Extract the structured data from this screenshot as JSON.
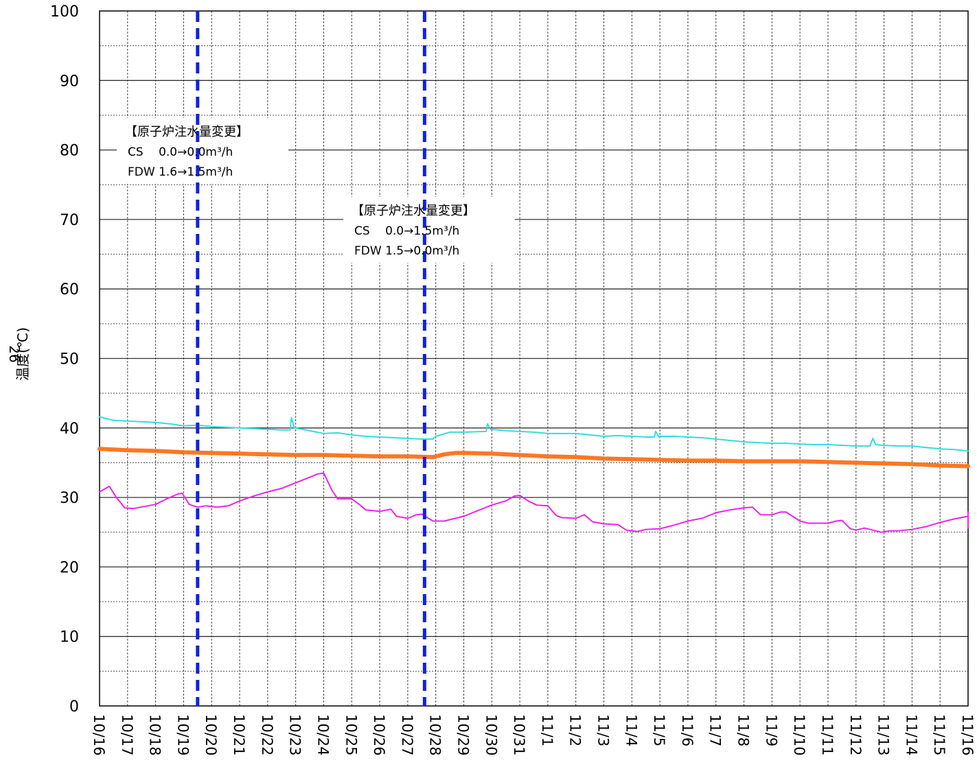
{
  "chart_data": {
    "type": "line",
    "title": "",
    "ylabel": "温度(℃)",
    "ylabel_prefix": "26",
    "xlabel": "",
    "ylim": [
      0,
      100
    ],
    "yticks": [
      0,
      10,
      20,
      30,
      40,
      50,
      60,
      70,
      80,
      90,
      100
    ],
    "grid": true,
    "x_start": "10/16",
    "x_end": "11/16",
    "x_ticks": [
      "10/16",
      "10/17",
      "10/18",
      "10/19",
      "10/20",
      "10/21",
      "10/22",
      "10/23",
      "10/24",
      "10/25",
      "10/26",
      "10/27",
      "10/28",
      "10/29",
      "10/30",
      "10/31",
      "11/1",
      "11/2",
      "11/3",
      "11/4",
      "11/5",
      "11/6",
      "11/7",
      "11/8",
      "11/9",
      "11/10",
      "11/11",
      "11/12",
      "11/13",
      "11/14",
      "11/15",
      "11/16"
    ],
    "series": [
      {
        "color": "#33dddd",
        "line_width": 2,
        "points": [
          [
            0,
            41.6
          ],
          [
            0.5,
            41.1
          ],
          [
            1,
            41.0
          ],
          [
            2,
            40.8
          ],
          [
            2.5,
            40.6
          ],
          [
            3,
            40.3
          ],
          [
            3.5,
            40.4
          ],
          [
            4,
            40.2
          ],
          [
            5,
            40.0
          ],
          [
            6,
            39.8
          ],
          [
            6.5,
            39.7
          ],
          [
            6.8,
            39.7
          ],
          [
            6.85,
            41.5
          ],
          [
            6.95,
            40.0
          ],
          [
            7,
            40.0
          ],
          [
            7.5,
            39.6
          ],
          [
            8,
            39.2
          ],
          [
            8.5,
            39.3
          ],
          [
            9,
            39.0
          ],
          [
            9.5,
            38.8
          ],
          [
            10,
            38.7
          ],
          [
            10.5,
            38.6
          ],
          [
            11,
            38.5
          ],
          [
            11.5,
            38.4
          ],
          [
            11.9,
            38.4
          ],
          [
            12,
            38.8
          ],
          [
            12.5,
            39.4
          ],
          [
            13,
            39.4
          ],
          [
            13.8,
            39.5
          ],
          [
            13.85,
            40.6
          ],
          [
            13.95,
            39.8
          ],
          [
            14.5,
            39.6
          ],
          [
            15,
            39.5
          ],
          [
            15.5,
            39.4
          ],
          [
            16,
            39.2
          ],
          [
            16.5,
            39.2
          ],
          [
            17,
            39.2
          ],
          [
            17.5,
            39.0
          ],
          [
            18,
            38.8
          ],
          [
            18.5,
            38.9
          ],
          [
            19,
            38.8
          ],
          [
            19.5,
            38.7
          ],
          [
            19.8,
            38.7
          ],
          [
            19.85,
            39.5
          ],
          [
            19.95,
            38.8
          ],
          [
            20.5,
            38.8
          ],
          [
            21,
            38.7
          ],
          [
            21.5,
            38.6
          ],
          [
            22,
            38.4
          ],
          [
            22.5,
            38.2
          ],
          [
            23,
            38.0
          ],
          [
            23.5,
            37.9
          ],
          [
            24,
            37.8
          ],
          [
            24.5,
            37.8
          ],
          [
            25,
            37.7
          ],
          [
            25.5,
            37.6
          ],
          [
            26,
            37.6
          ],
          [
            26.5,
            37.5
          ],
          [
            27,
            37.4
          ],
          [
            27.5,
            37.4
          ],
          [
            27.6,
            38.5
          ],
          [
            27.7,
            37.6
          ],
          [
            28,
            37.5
          ],
          [
            28.5,
            37.4
          ],
          [
            29,
            37.4
          ],
          [
            29.5,
            37.2
          ],
          [
            30,
            37.0
          ],
          [
            30.5,
            36.9
          ],
          [
            31,
            36.7
          ]
        ]
      },
      {
        "color": "#ff7722",
        "line_width": 6,
        "points": [
          [
            0,
            37.0
          ],
          [
            1,
            36.8
          ],
          [
            2,
            36.7
          ],
          [
            3,
            36.5
          ],
          [
            4,
            36.4
          ],
          [
            5,
            36.3
          ],
          [
            6,
            36.2
          ],
          [
            7,
            36.1
          ],
          [
            8,
            36.1
          ],
          [
            9,
            36.0
          ],
          [
            10,
            35.9
          ],
          [
            11,
            35.9
          ],
          [
            11.9,
            35.8
          ],
          [
            12.3,
            36.2
          ],
          [
            12.7,
            36.4
          ],
          [
            13,
            36.4
          ],
          [
            14,
            36.3
          ],
          [
            15,
            36.1
          ],
          [
            16,
            35.9
          ],
          [
            17,
            35.8
          ],
          [
            18,
            35.6
          ],
          [
            19,
            35.5
          ],
          [
            20,
            35.4
          ],
          [
            21,
            35.3
          ],
          [
            22,
            35.3
          ],
          [
            23,
            35.2
          ],
          [
            24,
            35.2
          ],
          [
            25,
            35.2
          ],
          [
            26,
            35.1
          ],
          [
            27,
            35.0
          ],
          [
            28,
            34.9
          ],
          [
            29,
            34.8
          ],
          [
            30,
            34.6
          ],
          [
            31,
            34.5
          ]
        ]
      },
      {
        "color": "#ee22ee",
        "line_width": 2,
        "points": [
          [
            0,
            30.8
          ],
          [
            0.35,
            31.6
          ],
          [
            0.6,
            30.0
          ],
          [
            0.9,
            28.5
          ],
          [
            1.2,
            28.4
          ],
          [
            1.6,
            28.7
          ],
          [
            2,
            29.0
          ],
          [
            2.4,
            29.8
          ],
          [
            2.8,
            30.5
          ],
          [
            2.95,
            30.6
          ],
          [
            3.2,
            29.0
          ],
          [
            3.5,
            28.6
          ],
          [
            3.8,
            28.8
          ],
          [
            4.2,
            28.6
          ],
          [
            4.6,
            28.8
          ],
          [
            5,
            29.5
          ],
          [
            5.5,
            30.2
          ],
          [
            6,
            30.8
          ],
          [
            6.5,
            31.3
          ],
          [
            7,
            32.1
          ],
          [
            7.5,
            32.9
          ],
          [
            7.8,
            33.4
          ],
          [
            8,
            33.5
          ],
          [
            8.3,
            31.0
          ],
          [
            8.5,
            29.8
          ],
          [
            9,
            29.8
          ],
          [
            9.3,
            28.9
          ],
          [
            9.5,
            28.2
          ],
          [
            10,
            28.0
          ],
          [
            10.4,
            28.3
          ],
          [
            10.6,
            27.3
          ],
          [
            11,
            27.0
          ],
          [
            11.3,
            27.5
          ],
          [
            11.5,
            27.6
          ],
          [
            11.9,
            26.6
          ],
          [
            12.3,
            26.6
          ],
          [
            13,
            27.3
          ],
          [
            13.5,
            28.1
          ],
          [
            14,
            28.9
          ],
          [
            14.5,
            29.5
          ],
          [
            14.8,
            30.2
          ],
          [
            15,
            30.3
          ],
          [
            15.3,
            29.5
          ],
          [
            15.6,
            28.9
          ],
          [
            16,
            28.8
          ],
          [
            16.3,
            27.4
          ],
          [
            16.5,
            27.1
          ],
          [
            17,
            27.0
          ],
          [
            17.3,
            27.5
          ],
          [
            17.6,
            26.5
          ],
          [
            18,
            26.2
          ],
          [
            18.5,
            26.1
          ],
          [
            18.8,
            25.3
          ],
          [
            19.2,
            25.1
          ],
          [
            19.5,
            25.4
          ],
          [
            20,
            25.5
          ],
          [
            20.5,
            26.0
          ],
          [
            21,
            26.6
          ],
          [
            21.5,
            27.0
          ],
          [
            22,
            27.8
          ],
          [
            22.5,
            28.2
          ],
          [
            23,
            28.5
          ],
          [
            23.3,
            28.6
          ],
          [
            23.6,
            27.5
          ],
          [
            24,
            27.5
          ],
          [
            24.3,
            27.9
          ],
          [
            24.5,
            27.9
          ],
          [
            25,
            26.6
          ],
          [
            25.3,
            26.3
          ],
          [
            25.6,
            26.3
          ],
          [
            26,
            26.3
          ],
          [
            26.3,
            26.6
          ],
          [
            26.5,
            26.7
          ],
          [
            26.8,
            25.5
          ],
          [
            27,
            25.3
          ],
          [
            27.3,
            25.6
          ],
          [
            27.5,
            25.4
          ],
          [
            27.9,
            25.0
          ],
          [
            28.2,
            25.2
          ],
          [
            28.5,
            25.2
          ],
          [
            29,
            25.4
          ],
          [
            29.5,
            25.8
          ],
          [
            30,
            26.4
          ],
          [
            30.5,
            26.9
          ],
          [
            31,
            27.3
          ],
          [
            31.2,
            27.4
          ],
          [
            31.4,
            27.6
          ],
          [
            31.6,
            27.9
          ],
          [
            31.7,
            27.7
          ],
          [
            32,
            26.2
          ],
          [
            32.5,
            26.2
          ],
          [
            33,
            26.0
          ],
          [
            33.5,
            25.6
          ]
        ]
      }
    ],
    "events": [
      {
        "x": 3.5,
        "color": "#1122dd",
        "label_lines": [
          "【原子炉注水量変更】",
          "CS　 0.0→0.0m³/h",
          "FDW  1.6→1.5m³/h"
        ]
      },
      {
        "x": 11.6,
        "color": "#1122dd",
        "label_lines": [
          "【原子炉注水量変更】",
          "CS　 0.0→1.5m³/h",
          "FDW  1.5→0.0m³/h"
        ]
      }
    ]
  }
}
